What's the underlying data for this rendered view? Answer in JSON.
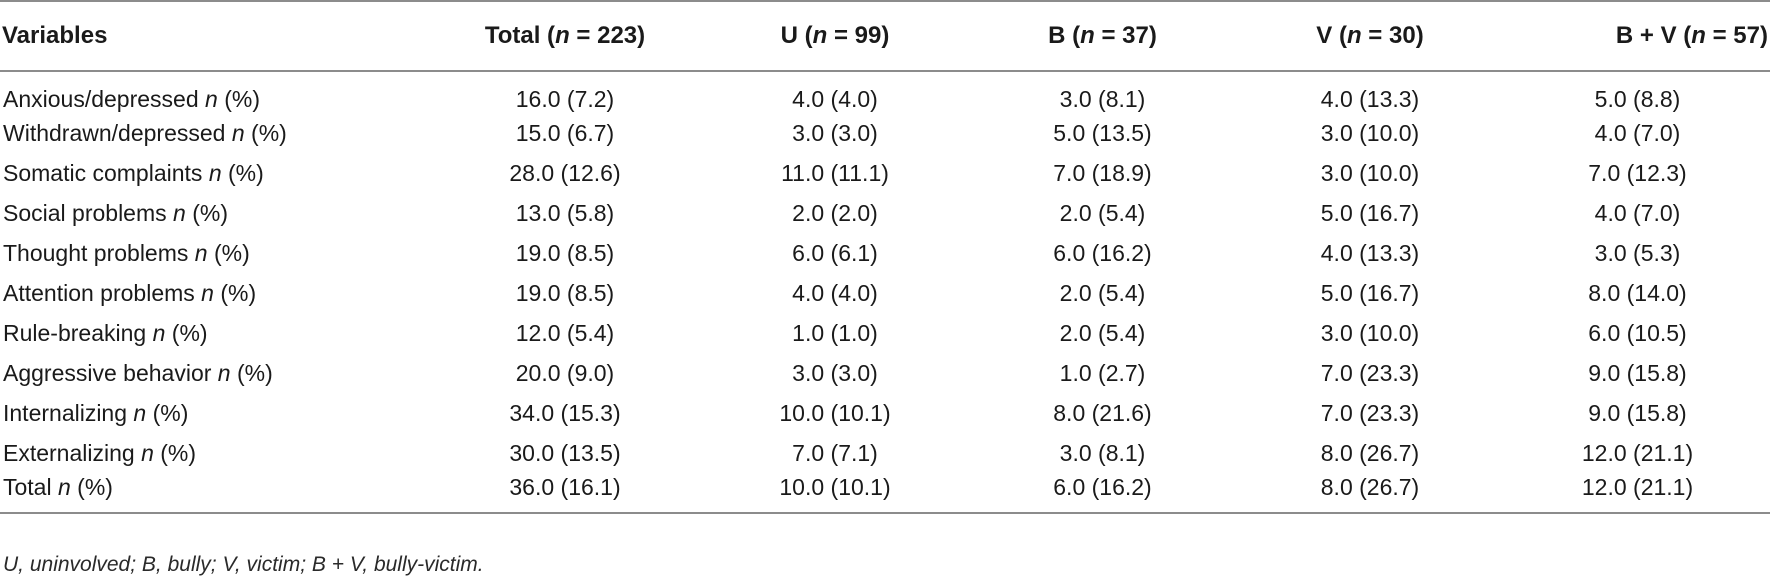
{
  "table": {
    "headers": [
      {
        "label": "Variables",
        "n": ""
      },
      {
        "label": "Total",
        "n": "223"
      },
      {
        "label": "U",
        "n": "99"
      },
      {
        "label": "B",
        "n": "37"
      },
      {
        "label": "V",
        "n": "30"
      },
      {
        "label": "B + V",
        "n": "57"
      }
    ],
    "n_symbol": "n",
    "n_eq": " = ",
    "rows": [
      {
        "label": "Anxious/depressed",
        "values": [
          "16.0 (7.2)",
          "4.0 (4.0)",
          "3.0 (8.1)",
          "4.0 (13.3)",
          "5.0 (8.8)"
        ]
      },
      {
        "label": "Withdrawn/depressed",
        "values": [
          "15.0 (6.7)",
          "3.0 (3.0)",
          "5.0 (13.5)",
          "3.0 (10.0)",
          "4.0 (7.0)"
        ]
      },
      {
        "label": "Somatic complaints",
        "values": [
          "28.0 (12.6)",
          "11.0 (11.1)",
          "7.0 (18.9)",
          "3.0 (10.0)",
          "7.0 (12.3)"
        ]
      },
      {
        "label": "Social problems",
        "values": [
          "13.0 (5.8)",
          "2.0 (2.0)",
          "2.0 (5.4)",
          "5.0 (16.7)",
          "4.0 (7.0)"
        ]
      },
      {
        "label": "Thought problems",
        "values": [
          "19.0 (8.5)",
          "6.0 (6.1)",
          "6.0 (16.2)",
          "4.0 (13.3)",
          "3.0 (5.3)"
        ]
      },
      {
        "label": "Attention problems",
        "values": [
          "19.0 (8.5)",
          "4.0 (4.0)",
          "2.0 (5.4)",
          "5.0 (16.7)",
          "8.0 (14.0)"
        ]
      },
      {
        "label": "Rule-breaking",
        "values": [
          "12.0 (5.4)",
          "1.0 (1.0)",
          "2.0 (5.4)",
          "3.0 (10.0)",
          "6.0 (10.5)"
        ]
      },
      {
        "label": "Aggressive behavior",
        "values": [
          "20.0 (9.0)",
          "3.0 (3.0)",
          "1.0 (2.7)",
          "7.0 (23.3)",
          "9.0 (15.8)"
        ]
      },
      {
        "label": "Internalizing",
        "values": [
          "34.0 (15.3)",
          "10.0 (10.1)",
          "8.0 (21.6)",
          "7.0 (23.3)",
          "9.0 (15.8)"
        ]
      },
      {
        "label": "Externalizing",
        "values": [
          "30.0 (13.5)",
          "7.0 (7.1)",
          "3.0 (8.1)",
          "8.0 (26.7)",
          "12.0 (21.1)"
        ]
      },
      {
        "label": "Total",
        "values": [
          "36.0 (16.1)",
          "10.0 (10.1)",
          "6.0 (16.2)",
          "8.0 (26.7)",
          "12.0 (21.1)"
        ]
      }
    ],
    "row_suffix_italic": "n",
    "row_suffix_rest": " (%)"
  },
  "footnote": "U, uninvolved; B, bully; V, victim; B + V, bully-victim."
}
